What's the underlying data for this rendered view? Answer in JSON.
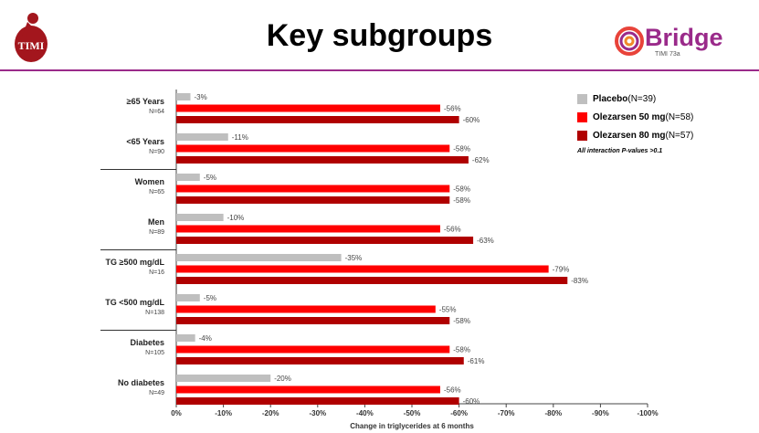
{
  "title": "Key subgroups",
  "logos": {
    "left_text": "TIMI",
    "right_brand": "Bridge",
    "right_sub": "TIMI 73a"
  },
  "legend": {
    "items": [
      {
        "label_bold": "Placebo",
        "label_rest": " (N=39)",
        "color": "#bfbfbf"
      },
      {
        "label_bold": "Olezarsen 50 mg",
        "label_rest": " (N=58)",
        "color": "#ff0000"
      },
      {
        "label_bold": "Olezarsen 80 mg",
        "label_rest": " (N=57)",
        "color": "#b00000"
      }
    ],
    "note": "All interaction P-values >0.1"
  },
  "chart_data": {
    "type": "bar",
    "orientation": "horizontal",
    "xlabel": "Change in triglycerides at 6 months",
    "xlim": [
      0,
      -100
    ],
    "xticks": [
      "0%",
      "-10%",
      "-20%",
      "-30%",
      "-40%",
      "-50%",
      "-60%",
      "-70%",
      "-80%",
      "-90%",
      "-100%"
    ],
    "categories": [
      {
        "name": "≥65 Years",
        "n": "N=64"
      },
      {
        "name": "<65 Years",
        "n": "N=90"
      },
      {
        "name": "Women",
        "n": "N=65"
      },
      {
        "name": "Men",
        "n": "N=89"
      },
      {
        "name": "TG ≥500 mg/dL",
        "n": "N=16"
      },
      {
        "name": "TG <500 mg/dL",
        "n": "N=138"
      },
      {
        "name": "Diabetes",
        "n": "N=105"
      },
      {
        "name": "No diabetes",
        "n": "N=49"
      }
    ],
    "series": [
      {
        "name": "Placebo",
        "color": "#bfbfbf",
        "values": [
          -3,
          -11,
          -5,
          -10,
          -35,
          -5,
          -4,
          -20
        ]
      },
      {
        "name": "Olezarsen 50 mg",
        "color": "#ff0000",
        "values": [
          -56,
          -58,
          -58,
          -56,
          -79,
          -55,
          -58,
          -56
        ]
      },
      {
        "name": "Olezarsen 80 mg",
        "color": "#b00000",
        "values": [
          -60,
          -62,
          -58,
          -63,
          -83,
          -58,
          -61,
          -60
        ]
      }
    ],
    "group_dividers_after": [
      1,
      3,
      5
    ],
    "grid": false,
    "legend_position": "top-right"
  }
}
